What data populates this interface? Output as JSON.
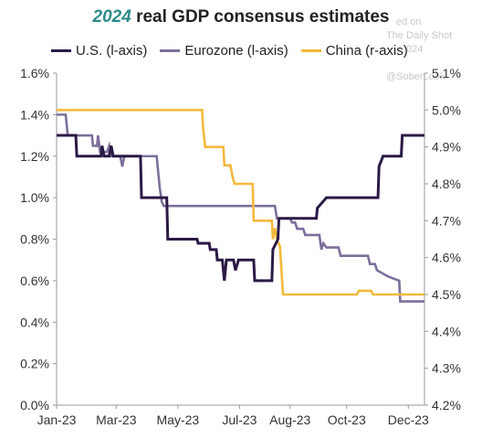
{
  "title": {
    "year": "2024",
    "rest": "real GDP consensus estimates"
  },
  "watermark": {
    "line1": "ed on",
    "line2": "The Daily Shot",
    "line3": "024",
    "line4": "@SoberLook"
  },
  "colors": {
    "us": "#2a1a45",
    "eurozone": "#7d6f9b",
    "china": "#f4b93c",
    "axis": "#999999"
  },
  "chart_data": {
    "type": "line",
    "title": "2024 real GDP consensus estimates",
    "legend_position": "top",
    "grid": false,
    "x_axis": {
      "type": "date",
      "range": [
        "2023-01-01",
        "2023-12-31"
      ],
      "tick_labels": [
        "Jan-23",
        "Mar-23",
        "May-23",
        "Jul-23",
        "Aug-23",
        "Oct-23",
        "Dec-23"
      ],
      "tick_dates": [
        "2023-01-01",
        "2023-03-01",
        "2023-05-01",
        "2023-07-01",
        "2023-08-20",
        "2023-10-15",
        "2023-12-15"
      ]
    },
    "y_left": {
      "range": [
        0.0,
        1.6
      ],
      "ticks": [
        0.0,
        0.2,
        0.4,
        0.6,
        0.8,
        1.0,
        1.2,
        1.4,
        1.6
      ],
      "tick_labels": [
        "0.0%",
        "0.2%",
        "0.4%",
        "0.6%",
        "0.8%",
        "1.0%",
        "1.2%",
        "1.4%",
        "1.6%"
      ]
    },
    "y_right": {
      "range": [
        4.2,
        5.1
      ],
      "ticks": [
        4.2,
        4.3,
        4.4,
        4.5,
        4.6,
        4.7,
        4.8,
        4.9,
        5.0,
        5.1
      ],
      "tick_labels": [
        "4.2%",
        "4.3%",
        "4.4%",
        "4.5%",
        "4.6%",
        "4.7%",
        "4.8%",
        "4.9%",
        "5.0%",
        "5.1%"
      ]
    },
    "series": [
      {
        "name": "U.S. (l-axis)",
        "key": "us",
        "axis": "left",
        "points": [
          [
            "2023-01-01",
            1.3
          ],
          [
            "2023-01-20",
            1.3
          ],
          [
            "2023-01-21",
            1.2
          ],
          [
            "2023-02-14",
            1.2
          ],
          [
            "2023-02-15",
            1.25
          ],
          [
            "2023-02-17",
            1.2
          ],
          [
            "2023-02-22",
            1.2
          ],
          [
            "2023-02-24",
            1.25
          ],
          [
            "2023-02-26",
            1.2
          ],
          [
            "2023-03-25",
            1.2
          ],
          [
            "2023-03-26",
            1.0
          ],
          [
            "2023-04-20",
            1.0
          ],
          [
            "2023-04-21",
            0.8
          ],
          [
            "2023-05-20",
            0.8
          ],
          [
            "2023-05-21",
            0.78
          ],
          [
            "2023-06-01",
            0.78
          ],
          [
            "2023-06-02",
            0.75
          ],
          [
            "2023-06-08",
            0.75
          ],
          [
            "2023-06-09",
            0.7
          ],
          [
            "2023-06-14",
            0.7
          ],
          [
            "2023-06-16",
            0.6
          ],
          [
            "2023-06-18",
            0.7
          ],
          [
            "2023-06-25",
            0.7
          ],
          [
            "2023-06-27",
            0.65
          ],
          [
            "2023-06-30",
            0.7
          ],
          [
            "2023-07-15",
            0.7
          ],
          [
            "2023-07-16",
            0.6
          ],
          [
            "2023-08-02",
            0.6
          ],
          [
            "2023-08-03",
            0.75
          ],
          [
            "2023-08-08",
            0.8
          ],
          [
            "2023-08-09",
            0.9
          ],
          [
            "2023-09-15",
            0.9
          ],
          [
            "2023-09-16",
            0.95
          ],
          [
            "2023-09-25",
            1.0
          ],
          [
            "2023-11-15",
            1.0
          ],
          [
            "2023-11-16",
            1.15
          ],
          [
            "2023-11-20",
            1.2
          ],
          [
            "2023-12-08",
            1.2
          ],
          [
            "2023-12-09",
            1.3
          ],
          [
            "2023-12-31",
            1.3
          ]
        ]
      },
      {
        "name": "Eurozone (l-axis)",
        "key": "eurozone",
        "axis": "left",
        "points": [
          [
            "2023-01-01",
            1.4
          ],
          [
            "2023-01-10",
            1.4
          ],
          [
            "2023-01-12",
            1.3
          ],
          [
            "2023-02-05",
            1.3
          ],
          [
            "2023-02-06",
            1.25
          ],
          [
            "2023-02-10",
            1.25
          ],
          [
            "2023-02-11",
            1.3
          ],
          [
            "2023-02-13",
            1.22
          ],
          [
            "2023-02-20",
            1.22
          ],
          [
            "2023-02-22",
            1.25
          ],
          [
            "2023-02-24",
            1.2
          ],
          [
            "2023-03-05",
            1.2
          ],
          [
            "2023-03-07",
            1.15
          ],
          [
            "2023-03-09",
            1.2
          ],
          [
            "2023-04-10",
            1.2
          ],
          [
            "2023-04-11",
            1.15
          ],
          [
            "2023-04-13",
            1.05
          ],
          [
            "2023-04-15",
            0.98
          ],
          [
            "2023-04-17",
            0.96
          ],
          [
            "2023-08-05",
            0.96
          ],
          [
            "2023-08-07",
            0.9
          ],
          [
            "2023-08-20",
            0.9
          ],
          [
            "2023-08-22",
            0.88
          ],
          [
            "2023-08-25",
            0.88
          ],
          [
            "2023-08-27",
            0.85
          ],
          [
            "2023-09-02",
            0.85
          ],
          [
            "2023-09-04",
            0.82
          ],
          [
            "2023-09-18",
            0.82
          ],
          [
            "2023-09-20",
            0.75
          ],
          [
            "2023-09-22",
            0.78
          ],
          [
            "2023-09-25",
            0.76
          ],
          [
            "2023-10-07",
            0.76
          ],
          [
            "2023-10-09",
            0.72
          ],
          [
            "2023-11-05",
            0.72
          ],
          [
            "2023-11-07",
            0.68
          ],
          [
            "2023-11-12",
            0.68
          ],
          [
            "2023-11-14",
            0.65
          ],
          [
            "2023-11-25",
            0.62
          ],
          [
            "2023-12-06",
            0.6
          ],
          [
            "2023-12-07",
            0.5
          ],
          [
            "2023-12-31",
            0.5
          ]
        ]
      },
      {
        "name": "China (r-axis)",
        "key": "china",
        "axis": "right",
        "points": [
          [
            "2023-01-01",
            5.0
          ],
          [
            "2023-05-25",
            5.0
          ],
          [
            "2023-05-26",
            4.95
          ],
          [
            "2023-05-28",
            4.9
          ],
          [
            "2023-06-15",
            4.9
          ],
          [
            "2023-06-16",
            4.85
          ],
          [
            "2023-06-22",
            4.85
          ],
          [
            "2023-06-24",
            4.82
          ],
          [
            "2023-06-26",
            4.8
          ],
          [
            "2023-07-14",
            4.8
          ],
          [
            "2023-07-15",
            4.7
          ],
          [
            "2023-08-02",
            4.7
          ],
          [
            "2023-08-03",
            4.65
          ],
          [
            "2023-08-05",
            4.68
          ],
          [
            "2023-08-07",
            4.65
          ],
          [
            "2023-08-10",
            4.63
          ],
          [
            "2023-08-13",
            4.5
          ],
          [
            "2023-10-25",
            4.5
          ],
          [
            "2023-10-27",
            4.51
          ],
          [
            "2023-11-08",
            4.51
          ],
          [
            "2023-11-10",
            4.5
          ],
          [
            "2023-12-31",
            4.5
          ]
        ]
      }
    ]
  }
}
